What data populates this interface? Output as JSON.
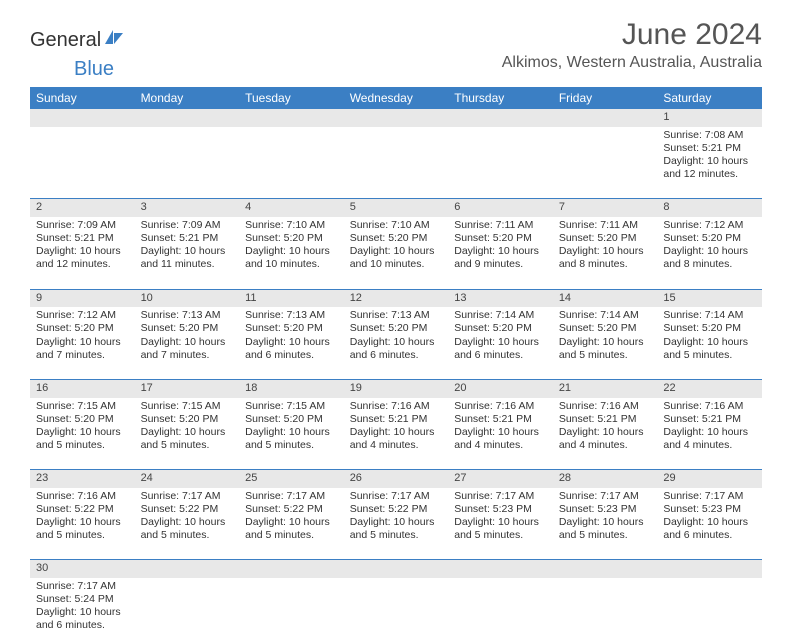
{
  "logo": {
    "text1": "General",
    "text2": "Blue"
  },
  "title": "June 2024",
  "location": "Alkimos, Western Australia, Australia",
  "colors": {
    "header_bg": "#3b7fc4",
    "header_fg": "#ffffff",
    "daynum_bg": "#e8e8e8",
    "text": "#333333",
    "row_border": "#3b7fc4"
  },
  "days_of_week": [
    "Sunday",
    "Monday",
    "Tuesday",
    "Wednesday",
    "Thursday",
    "Friday",
    "Saturday"
  ],
  "weeks": [
    [
      null,
      null,
      null,
      null,
      null,
      null,
      {
        "n": "1",
        "sr": "Sunrise: 7:08 AM",
        "ss": "Sunset: 5:21 PM",
        "dl1": "Daylight: 10 hours",
        "dl2": "and 12 minutes."
      }
    ],
    [
      {
        "n": "2",
        "sr": "Sunrise: 7:09 AM",
        "ss": "Sunset: 5:21 PM",
        "dl1": "Daylight: 10 hours",
        "dl2": "and 12 minutes."
      },
      {
        "n": "3",
        "sr": "Sunrise: 7:09 AM",
        "ss": "Sunset: 5:21 PM",
        "dl1": "Daylight: 10 hours",
        "dl2": "and 11 minutes."
      },
      {
        "n": "4",
        "sr": "Sunrise: 7:10 AM",
        "ss": "Sunset: 5:20 PM",
        "dl1": "Daylight: 10 hours",
        "dl2": "and 10 minutes."
      },
      {
        "n": "5",
        "sr": "Sunrise: 7:10 AM",
        "ss": "Sunset: 5:20 PM",
        "dl1": "Daylight: 10 hours",
        "dl2": "and 10 minutes."
      },
      {
        "n": "6",
        "sr": "Sunrise: 7:11 AM",
        "ss": "Sunset: 5:20 PM",
        "dl1": "Daylight: 10 hours",
        "dl2": "and 9 minutes."
      },
      {
        "n": "7",
        "sr": "Sunrise: 7:11 AM",
        "ss": "Sunset: 5:20 PM",
        "dl1": "Daylight: 10 hours",
        "dl2": "and 8 minutes."
      },
      {
        "n": "8",
        "sr": "Sunrise: 7:12 AM",
        "ss": "Sunset: 5:20 PM",
        "dl1": "Daylight: 10 hours",
        "dl2": "and 8 minutes."
      }
    ],
    [
      {
        "n": "9",
        "sr": "Sunrise: 7:12 AM",
        "ss": "Sunset: 5:20 PM",
        "dl1": "Daylight: 10 hours",
        "dl2": "and 7 minutes."
      },
      {
        "n": "10",
        "sr": "Sunrise: 7:13 AM",
        "ss": "Sunset: 5:20 PM",
        "dl1": "Daylight: 10 hours",
        "dl2": "and 7 minutes."
      },
      {
        "n": "11",
        "sr": "Sunrise: 7:13 AM",
        "ss": "Sunset: 5:20 PM",
        "dl1": "Daylight: 10 hours",
        "dl2": "and 6 minutes."
      },
      {
        "n": "12",
        "sr": "Sunrise: 7:13 AM",
        "ss": "Sunset: 5:20 PM",
        "dl1": "Daylight: 10 hours",
        "dl2": "and 6 minutes."
      },
      {
        "n": "13",
        "sr": "Sunrise: 7:14 AM",
        "ss": "Sunset: 5:20 PM",
        "dl1": "Daylight: 10 hours",
        "dl2": "and 6 minutes."
      },
      {
        "n": "14",
        "sr": "Sunrise: 7:14 AM",
        "ss": "Sunset: 5:20 PM",
        "dl1": "Daylight: 10 hours",
        "dl2": "and 5 minutes."
      },
      {
        "n": "15",
        "sr": "Sunrise: 7:14 AM",
        "ss": "Sunset: 5:20 PM",
        "dl1": "Daylight: 10 hours",
        "dl2": "and 5 minutes."
      }
    ],
    [
      {
        "n": "16",
        "sr": "Sunrise: 7:15 AM",
        "ss": "Sunset: 5:20 PM",
        "dl1": "Daylight: 10 hours",
        "dl2": "and 5 minutes."
      },
      {
        "n": "17",
        "sr": "Sunrise: 7:15 AM",
        "ss": "Sunset: 5:20 PM",
        "dl1": "Daylight: 10 hours",
        "dl2": "and 5 minutes."
      },
      {
        "n": "18",
        "sr": "Sunrise: 7:15 AM",
        "ss": "Sunset: 5:20 PM",
        "dl1": "Daylight: 10 hours",
        "dl2": "and 5 minutes."
      },
      {
        "n": "19",
        "sr": "Sunrise: 7:16 AM",
        "ss": "Sunset: 5:21 PM",
        "dl1": "Daylight: 10 hours",
        "dl2": "and 4 minutes."
      },
      {
        "n": "20",
        "sr": "Sunrise: 7:16 AM",
        "ss": "Sunset: 5:21 PM",
        "dl1": "Daylight: 10 hours",
        "dl2": "and 4 minutes."
      },
      {
        "n": "21",
        "sr": "Sunrise: 7:16 AM",
        "ss": "Sunset: 5:21 PM",
        "dl1": "Daylight: 10 hours",
        "dl2": "and 4 minutes."
      },
      {
        "n": "22",
        "sr": "Sunrise: 7:16 AM",
        "ss": "Sunset: 5:21 PM",
        "dl1": "Daylight: 10 hours",
        "dl2": "and 4 minutes."
      }
    ],
    [
      {
        "n": "23",
        "sr": "Sunrise: 7:16 AM",
        "ss": "Sunset: 5:22 PM",
        "dl1": "Daylight: 10 hours",
        "dl2": "and 5 minutes."
      },
      {
        "n": "24",
        "sr": "Sunrise: 7:17 AM",
        "ss": "Sunset: 5:22 PM",
        "dl1": "Daylight: 10 hours",
        "dl2": "and 5 minutes."
      },
      {
        "n": "25",
        "sr": "Sunrise: 7:17 AM",
        "ss": "Sunset: 5:22 PM",
        "dl1": "Daylight: 10 hours",
        "dl2": "and 5 minutes."
      },
      {
        "n": "26",
        "sr": "Sunrise: 7:17 AM",
        "ss": "Sunset: 5:22 PM",
        "dl1": "Daylight: 10 hours",
        "dl2": "and 5 minutes."
      },
      {
        "n": "27",
        "sr": "Sunrise: 7:17 AM",
        "ss": "Sunset: 5:23 PM",
        "dl1": "Daylight: 10 hours",
        "dl2": "and 5 minutes."
      },
      {
        "n": "28",
        "sr": "Sunrise: 7:17 AM",
        "ss": "Sunset: 5:23 PM",
        "dl1": "Daylight: 10 hours",
        "dl2": "and 5 minutes."
      },
      {
        "n": "29",
        "sr": "Sunrise: 7:17 AM",
        "ss": "Sunset: 5:23 PM",
        "dl1": "Daylight: 10 hours",
        "dl2": "and 6 minutes."
      }
    ],
    [
      {
        "n": "30",
        "sr": "Sunrise: 7:17 AM",
        "ss": "Sunset: 5:24 PM",
        "dl1": "Daylight: 10 hours",
        "dl2": "and 6 minutes."
      },
      null,
      null,
      null,
      null,
      null,
      null
    ]
  ]
}
